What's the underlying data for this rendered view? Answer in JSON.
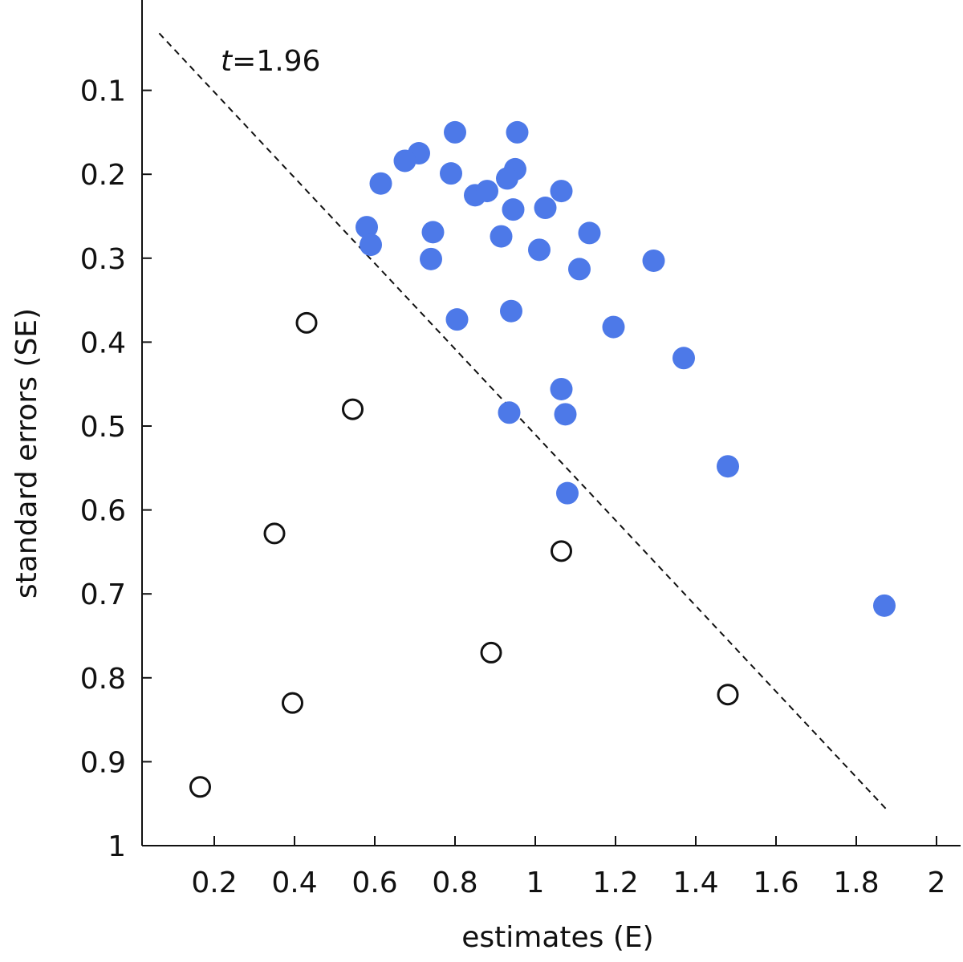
{
  "chart_data": {
    "type": "scatter",
    "xlabel": "estimates (E)",
    "ylabel": "standard errors (SE)",
    "xlim": [
      0.02,
      2.06
    ],
    "ylim": [
      0.0,
      1.0
    ],
    "y_inverted": true,
    "x_ticks": [
      0.2,
      0.4,
      0.6,
      0.8,
      1,
      1.2,
      1.4,
      1.6,
      1.8,
      2
    ],
    "x_tick_labels": [
      "0.2",
      "0.4",
      "0.6",
      "0.8",
      "1",
      "1.2",
      "1.4",
      "1.6",
      "1.8",
      "2"
    ],
    "y_ticks": [
      0.1,
      0.2,
      0.3,
      0.4,
      0.5,
      0.6,
      0.7,
      0.8,
      0.9,
      1
    ],
    "y_tick_labels": [
      "0.1",
      "0.2",
      "0.3",
      "0.4",
      "0.5",
      "0.6",
      "0.7",
      "0.8",
      "0.9",
      "1"
    ],
    "grid": false,
    "reference_line": {
      "t_value": 1.96,
      "label_italic": "t",
      "label_rest": "=1.96",
      "style": "dashed"
    },
    "colors": {
      "filled": "#4d79e8",
      "open_stroke": "#111111",
      "line": "#111111"
    },
    "series": [
      {
        "marker": "filled",
        "points": [
          [
            0.8,
            0.15
          ],
          [
            0.955,
            0.15
          ],
          [
            0.71,
            0.175
          ],
          [
            0.675,
            0.184
          ],
          [
            0.79,
            0.199
          ],
          [
            0.95,
            0.194
          ],
          [
            0.93,
            0.205
          ],
          [
            0.615,
            0.211
          ],
          [
            0.85,
            0.225
          ],
          [
            0.88,
            0.22
          ],
          [
            1.065,
            0.22
          ],
          [
            0.945,
            0.242
          ],
          [
            1.025,
            0.24
          ],
          [
            0.58,
            0.263
          ],
          [
            0.745,
            0.269
          ],
          [
            0.915,
            0.274
          ],
          [
            1.135,
            0.27
          ],
          [
            0.59,
            0.284
          ],
          [
            1.01,
            0.29
          ],
          [
            0.74,
            0.301
          ],
          [
            1.295,
            0.303
          ],
          [
            1.11,
            0.313
          ],
          [
            0.94,
            0.363
          ],
          [
            0.805,
            0.373
          ],
          [
            1.195,
            0.382
          ],
          [
            1.37,
            0.419
          ],
          [
            1.065,
            0.456
          ],
          [
            0.935,
            0.484
          ],
          [
            1.075,
            0.486
          ],
          [
            1.48,
            0.548
          ],
          [
            1.08,
            0.58
          ],
          [
            1.87,
            0.714
          ]
        ]
      },
      {
        "marker": "open",
        "points": [
          [
            0.43,
            0.377
          ],
          [
            0.545,
            0.48
          ],
          [
            0.35,
            0.628
          ],
          [
            1.065,
            0.649
          ],
          [
            0.89,
            0.77
          ],
          [
            0.395,
            0.83
          ],
          [
            1.48,
            0.82
          ],
          [
            0.165,
            0.93
          ]
        ]
      }
    ]
  }
}
